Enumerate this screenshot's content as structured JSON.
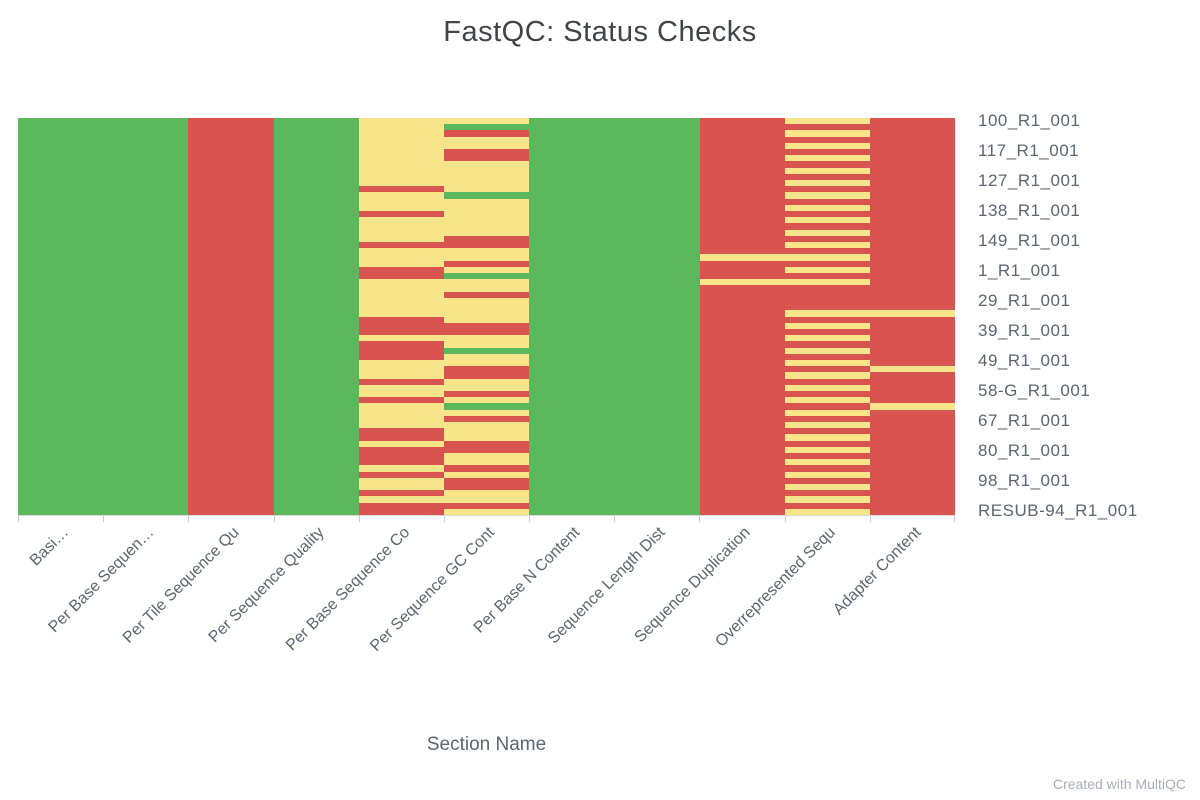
{
  "title": "FastQC: Status Checks",
  "footer": "Created with MultiQC",
  "chart_data": {
    "type": "heatmap",
    "title": "FastQC: Status Checks",
    "xlabel": "Section Name",
    "legend_position": "none",
    "grid": false,
    "columns": [
      "Basi…",
      "Per Base Sequen…",
      "Per Tile Sequence Qu",
      "Per Sequence Quality",
      "Per Base Sequence Co",
      "Per Sequence GC Cont",
      "Per Base N Content",
      "Sequence Length Dist",
      "Sequence Duplication",
      "Overrepresented Sequ",
      "Adapter Content"
    ],
    "sample_labels": [
      "100_R1_001",
      "117_R1_001",
      "127_R1_001",
      "138_R1_001",
      "149_R1_001",
      "1_R1_001",
      "29_R1_001",
      "39_R1_001",
      "49_R1_001",
      "58-G_R1_001",
      "67_R1_001",
      "80_R1_001",
      "98_R1_001",
      "RESUB-94_R1_001"
    ],
    "statuses": {
      "P": "pass",
      "W": "warn",
      "F": "fail"
    },
    "colors": {
      "P": "#5cb85c",
      "W": "#f8e58b",
      "F": "#d9534f"
    },
    "rows": [
      "PPFPWWPPFWF",
      "PPFPWPPPFFF",
      "PPFPWFPPFWF",
      "PPFPWWPPFFF",
      "PPFPWWPPFWF",
      "PPFPWFPPFFF",
      "PPFPWFPPFWF",
      "PPFPWWPPFFF",
      "PPFPWWPPFWF",
      "PPFPWWPPFFF",
      "PPFPWWPPFWF",
      "PPFPFWPPFFF",
      "PPFPWPPPFWF",
      "PPFPWWPPFFF",
      "PPFPWWPPFWF",
      "PPFPFWPPFFF",
      "PPFPWWPPFWF",
      "PPFPWWPPFFF",
      "PPFPWWPPFWF",
      "PPFPWFPPFFF",
      "PPFPFFPPFWF",
      "PPFPWWPPFFF",
      "PPFPWWPPWWF",
      "PPFPWFPPFFF",
      "PPFPFWPPFWF",
      "PPFPFPPPFFF",
      "PPFPWWPPWWF",
      "PPFPWWPPFFF",
      "PPFPWFPPFFF",
      "PPFPWWPPFFF",
      "PPFPWWPPFFF",
      "PPFPWWPPFWW",
      "PPFPFWPPFFF",
      "PPFPFFPPFWF",
      "PPFPFFPPFFF",
      "PPFPWWPPFWF",
      "PPFPFWPPFFF",
      "PPFPFPPPFWF",
      "PPFPFWPPFFF",
      "PPFPWWPPFWF",
      "PPFPWFPPFFW",
      "PPFPWFPPFWF",
      "PPFPFWPPFFF",
      "PPFPWWPPFWF",
      "PPFPWFPPFFF",
      "PPFPFWPPFWF",
      "PPFPWPPPFFW",
      "PPFPWWPPFWF",
      "PPFPWFPPFFF",
      "PPFPWWPPFWF",
      "PPFPFWPPFFF",
      "PPFPFWPPFWF",
      "PPFPWFPPFFF",
      "PPFPFFPPFWF",
      "PPFPFWPPFFF",
      "PPFPFWPPFWF",
      "PPFPWFPPFFF",
      "PPFPFWPPFWF",
      "PPFPWFPPFFF",
      "PPFPWFPPFWF",
      "PPFPFWPPFFF",
      "PPFPWWPPFWF",
      "PPFPFFPPFFF",
      "PPFPFWPPFWF"
    ]
  }
}
